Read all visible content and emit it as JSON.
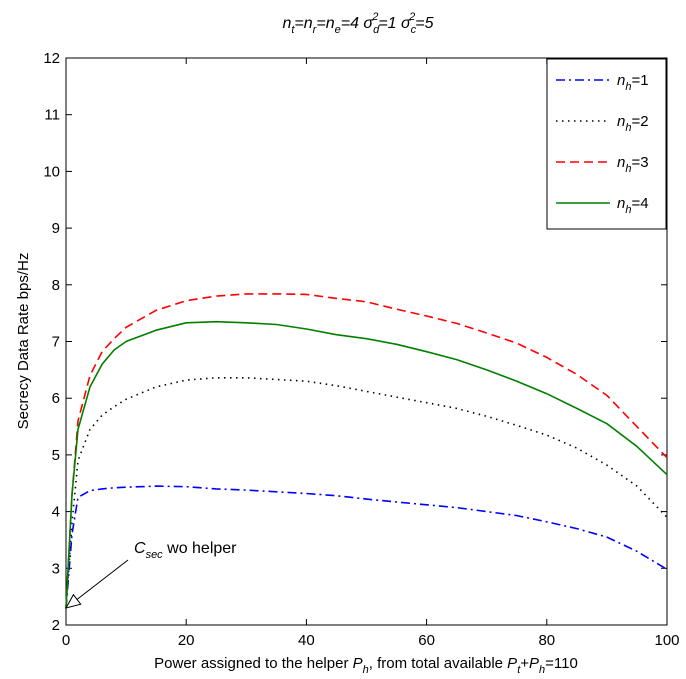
{
  "chart_data": {
    "type": "line",
    "title": {
      "main": "n_t=n_r=n_e=4  σ_d^2=1  σ_c^2=5",
      "parts": [
        "n",
        "t",
        "=n",
        "r",
        "=n",
        "e",
        "=4  σ",
        "d",
        "2",
        "=1  σ",
        "c",
        "2",
        "=5"
      ]
    },
    "xlabel": {
      "main": "Power assigned to the helper P_h, from total available P_t+P_h=110",
      "parts": [
        "Power assigned to the helper ",
        "P",
        "h",
        ", from total available ",
        "P",
        "t",
        "+",
        "P",
        "h",
        "=110"
      ]
    },
    "ylabel": "Secrecy Data Rate bps/Hz",
    "xlim": [
      0,
      100
    ],
    "ylim": [
      2,
      12
    ],
    "xticks": [
      0,
      20,
      40,
      60,
      80,
      100
    ],
    "yticks": [
      2,
      3,
      4,
      5,
      6,
      7,
      8,
      9,
      10,
      11,
      12
    ],
    "grid": false,
    "legend_position": "top-right",
    "annotation": {
      "text_main": "C",
      "text_sub": "sec",
      "text_rest": " wo helper",
      "arrow_to": [
        0,
        2.3
      ]
    },
    "series": [
      {
        "name": "n_h=1",
        "label_base": "n",
        "label_sub": "h",
        "label_rest": "=1",
        "color": "#0000ff",
        "dash": "dashdot",
        "x": [
          0,
          1,
          2,
          4,
          6,
          8,
          10,
          15,
          20,
          25,
          30,
          35,
          40,
          45,
          50,
          55,
          60,
          65,
          70,
          75,
          80,
          85,
          90,
          95,
          100
        ],
        "y": [
          2.3,
          3.6,
          4.25,
          4.37,
          4.4,
          4.42,
          4.43,
          4.45,
          4.44,
          4.4,
          4.38,
          4.35,
          4.32,
          4.28,
          4.22,
          4.17,
          4.12,
          4.07,
          4.0,
          3.93,
          3.82,
          3.7,
          3.55,
          3.3,
          2.98
        ]
      },
      {
        "name": "n_h=2",
        "label_base": "n",
        "label_sub": "h",
        "label_rest": "=2",
        "color": "#000000",
        "dash": "dotted",
        "x": [
          0,
          1,
          2,
          4,
          6,
          8,
          10,
          15,
          20,
          25,
          30,
          35,
          40,
          45,
          50,
          55,
          60,
          65,
          70,
          75,
          80,
          85,
          90,
          95,
          100
        ],
        "y": [
          2.3,
          3.8,
          4.9,
          5.45,
          5.7,
          5.85,
          5.98,
          6.2,
          6.32,
          6.36,
          6.36,
          6.33,
          6.3,
          6.22,
          6.12,
          6.02,
          5.92,
          5.82,
          5.68,
          5.52,
          5.35,
          5.12,
          4.82,
          4.45,
          3.9
        ]
      },
      {
        "name": "n_h=3",
        "label_base": "n",
        "label_sub": "h",
        "label_rest": "=3",
        "color": "#ff0000",
        "dash": "dashed",
        "x": [
          0,
          1,
          2,
          4,
          6,
          8,
          10,
          15,
          20,
          25,
          30,
          35,
          40,
          45,
          50,
          55,
          60,
          65,
          70,
          75,
          80,
          85,
          90,
          95,
          100
        ],
        "y": [
          2.3,
          4.3,
          5.6,
          6.4,
          6.82,
          7.05,
          7.25,
          7.55,
          7.72,
          7.8,
          7.84,
          7.84,
          7.83,
          7.76,
          7.7,
          7.57,
          7.45,
          7.32,
          7.15,
          6.97,
          6.72,
          6.42,
          6.05,
          5.5,
          4.95
        ]
      },
      {
        "name": "n_h=4",
        "label_base": "n",
        "label_sub": "h",
        "label_rest": "=4",
        "color": "#008000",
        "dash": "solid",
        "x": [
          0,
          1,
          2,
          4,
          6,
          8,
          10,
          15,
          20,
          25,
          30,
          35,
          40,
          45,
          50,
          55,
          60,
          65,
          70,
          75,
          80,
          85,
          90,
          95,
          100
        ],
        "y": [
          2.3,
          4.3,
          5.45,
          6.2,
          6.6,
          6.85,
          7.0,
          7.2,
          7.33,
          7.35,
          7.33,
          7.3,
          7.22,
          7.12,
          7.05,
          6.95,
          6.82,
          6.68,
          6.5,
          6.3,
          6.08,
          5.82,
          5.55,
          5.15,
          4.65
        ]
      }
    ]
  }
}
